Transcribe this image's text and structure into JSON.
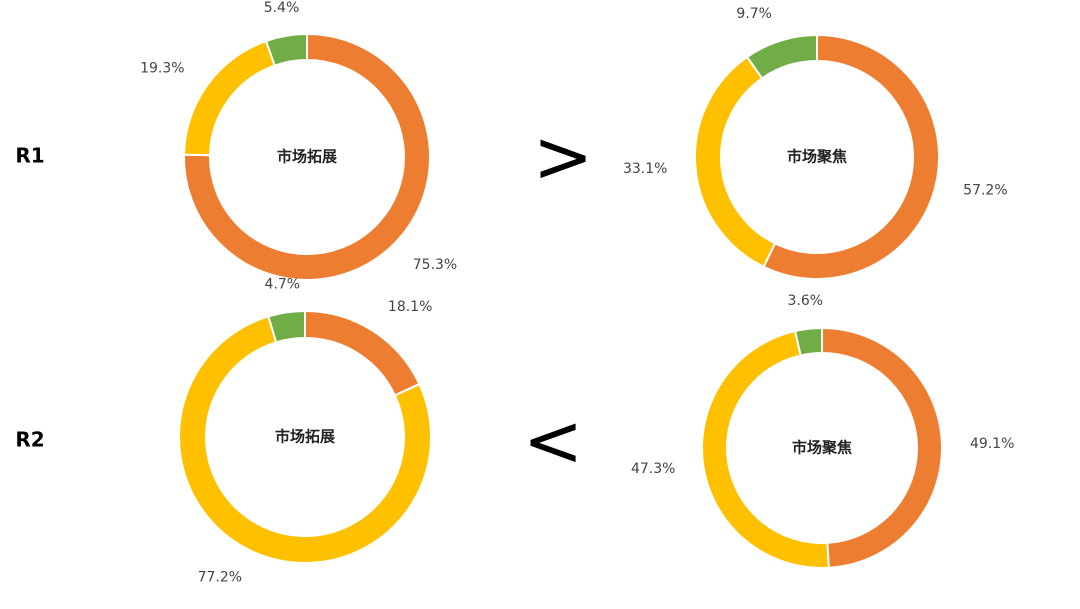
{
  "chart_data": [
    {
      "type": "pie",
      "center_label": "市场拓展",
      "values": [
        75.3,
        19.3,
        5.4
      ],
      "value_labels": [
        "75.3%",
        "19.3%",
        "5.4%"
      ],
      "colors": [
        "#ED7D31",
        "#FFC000",
        "#70AD47"
      ]
    },
    {
      "type": "pie",
      "center_label": "市场聚焦",
      "values": [
        57.2,
        33.1,
        9.7
      ],
      "value_labels": [
        "57.2%",
        "33.1%",
        "9.7%"
      ],
      "colors": [
        "#ED7D31",
        "#FFC000",
        "#70AD47"
      ]
    },
    {
      "type": "pie",
      "center_label": "市场拓展",
      "values": [
        18.1,
        77.2,
        4.7
      ],
      "value_labels": [
        "18.1%",
        "77.2%",
        "4.7%"
      ],
      "colors": [
        "#ED7D31",
        "#FFC000",
        "#70AD47"
      ]
    },
    {
      "type": "pie",
      "center_label": "市场聚焦",
      "values": [
        49.1,
        47.3,
        3.6
      ],
      "value_labels": [
        "49.1%",
        "47.3%",
        "3.6%"
      ],
      "colors": [
        "#ED7D31",
        "#FFC000",
        "#70AD47"
      ]
    }
  ],
  "rows": [
    {
      "label": "R1",
      "comparison": ">"
    },
    {
      "label": "R2",
      "comparison": "<"
    }
  ]
}
